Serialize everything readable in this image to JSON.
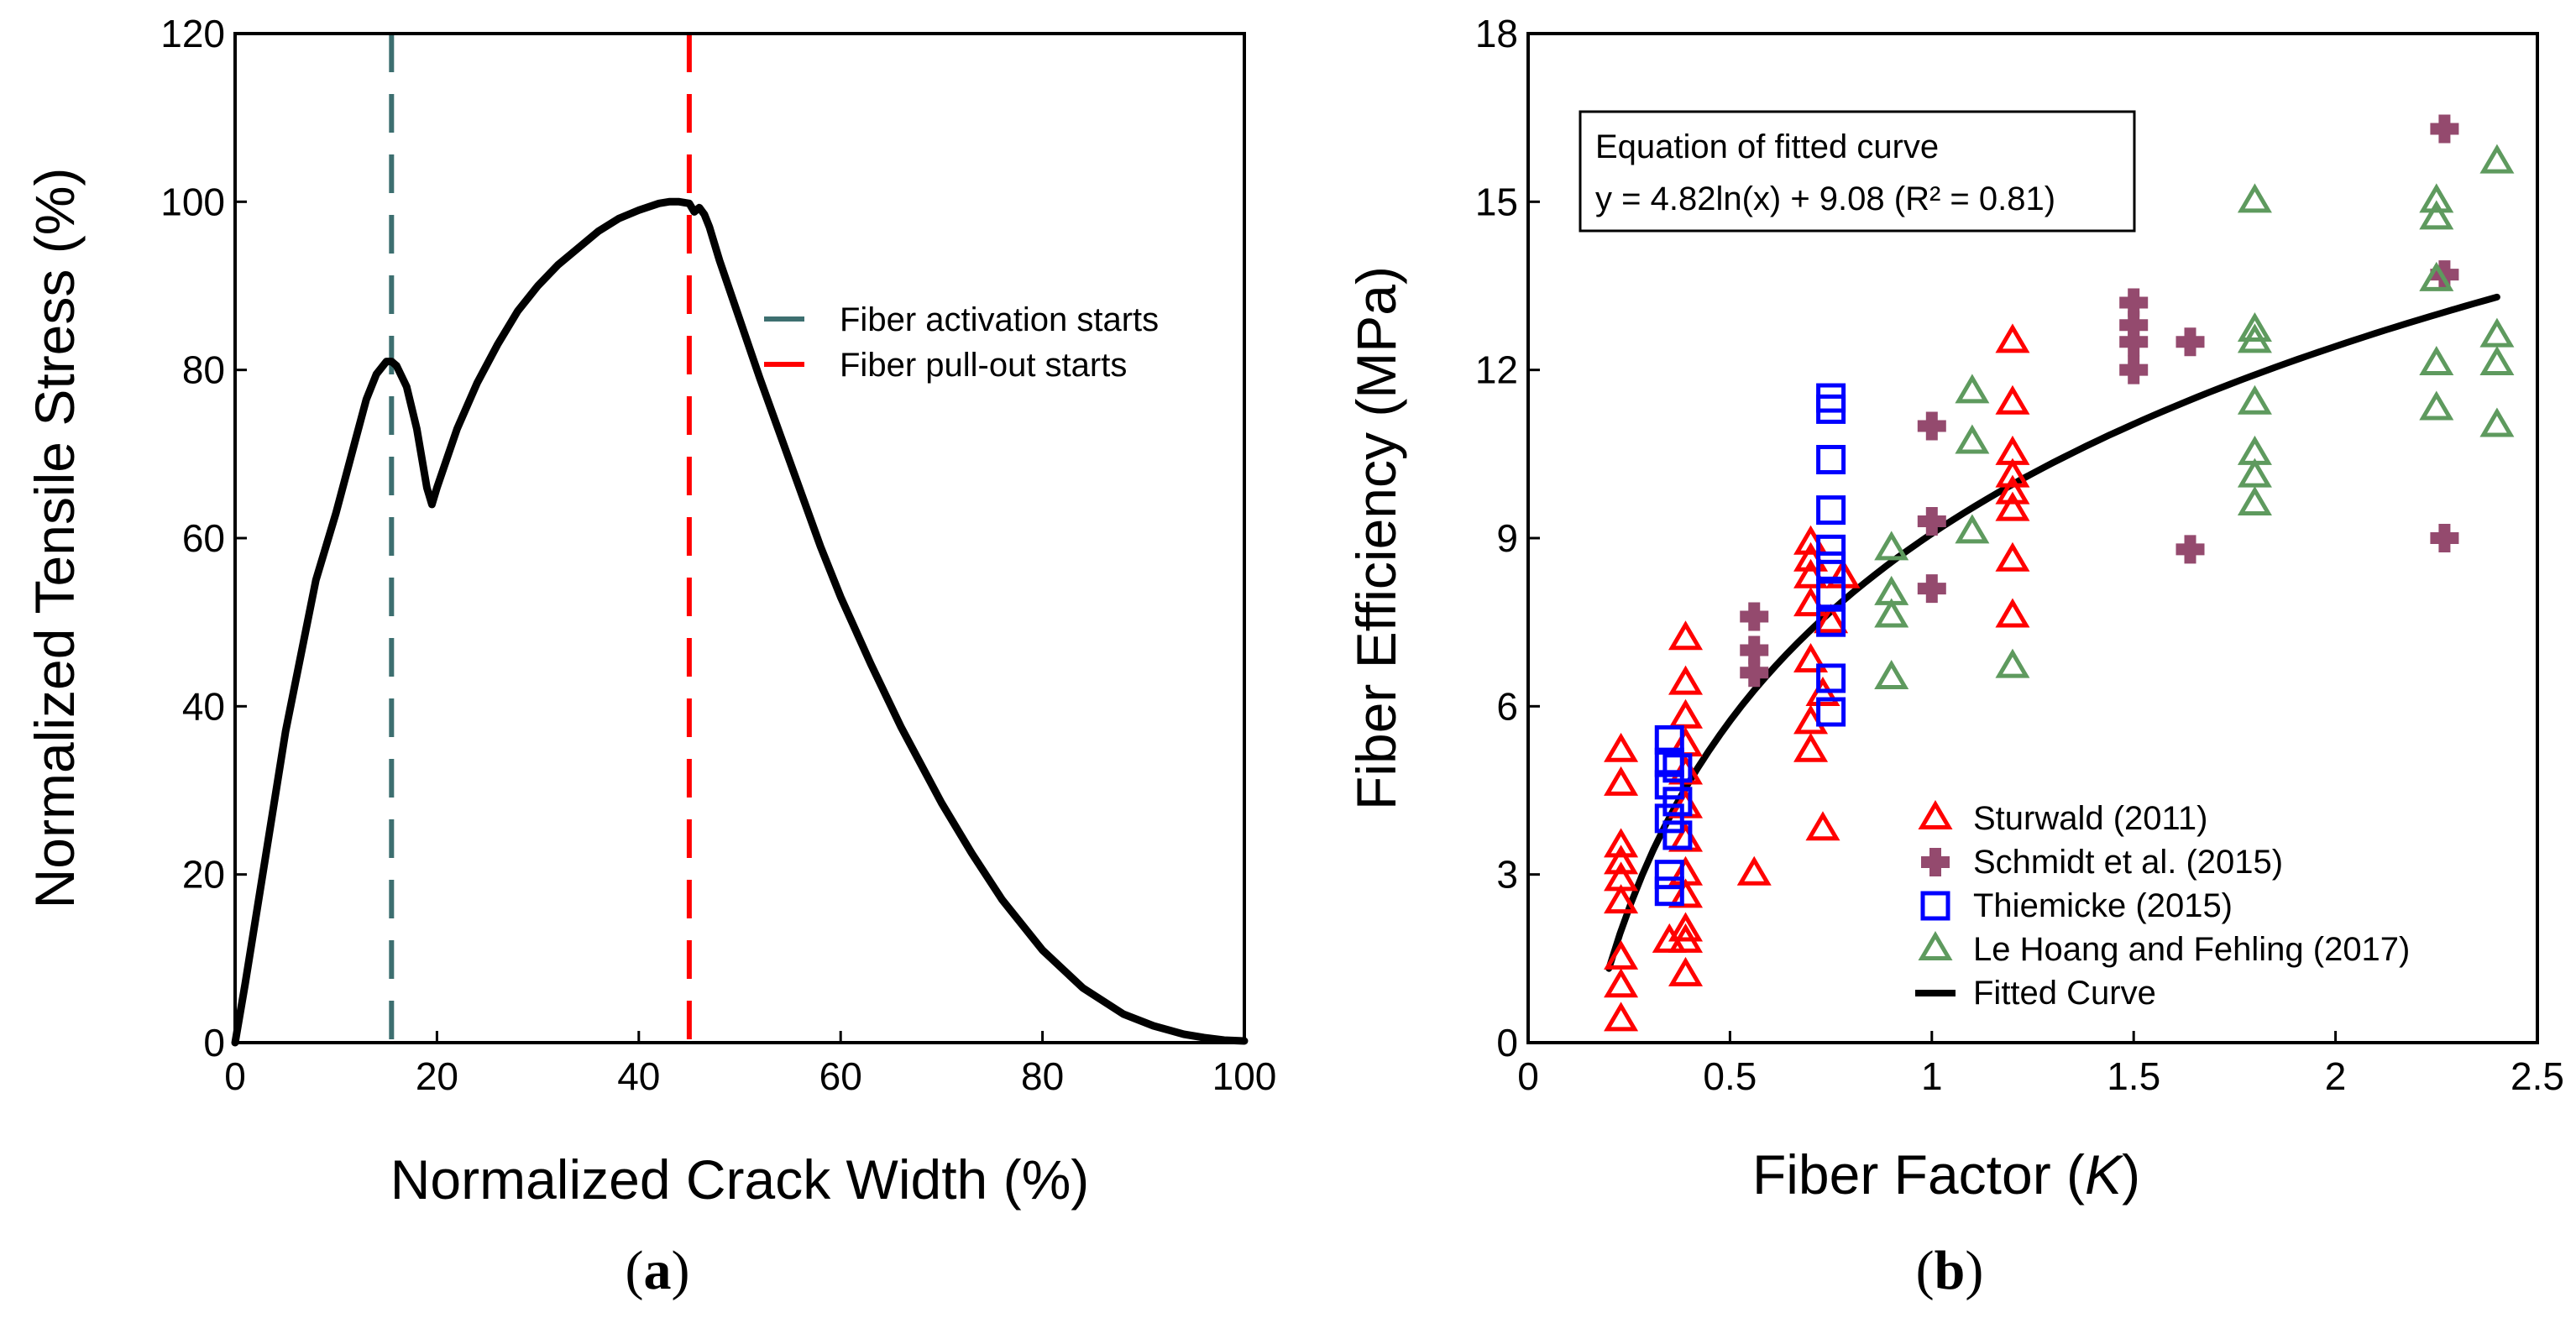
{
  "chart_data": [
    {
      "panel": "a",
      "type": "line",
      "panel_label": "a",
      "xlabel": "Normalized Crack Width (%)",
      "ylabel": "Normalized Tensile Stress (%)",
      "xlim": [
        0,
        100
      ],
      "ylim": [
        0,
        120
      ],
      "xticks": [
        0,
        20,
        40,
        60,
        80,
        100
      ],
      "yticks": [
        0,
        20,
        40,
        60,
        80,
        100,
        120
      ],
      "grid": false,
      "legend_position": "right-middle",
      "series": [
        {
          "style": "solid",
          "color": "#000000",
          "x": [
            0,
            1,
            3,
            5,
            8,
            10,
            12,
            13,
            14,
            15,
            15.5,
            16,
            17,
            18,
            19,
            19.5,
            20,
            21,
            22,
            24,
            26,
            28,
            30,
            32,
            34,
            36,
            38,
            40,
            42,
            43,
            44,
            45,
            45.5,
            46,
            46.5,
            47,
            48,
            50,
            52,
            55,
            58,
            60,
            63,
            66,
            70,
            73,
            76,
            80,
            84,
            88,
            91,
            94,
            96,
            98,
            100
          ],
          "y": [
            0,
            7,
            22,
            37,
            55,
            63,
            72,
            76.5,
            79.5,
            81,
            81,
            80.5,
            78,
            73,
            66,
            64,
            66,
            69.5,
            73,
            78.5,
            83,
            87,
            90,
            92.5,
            94.5,
            96.5,
            98,
            99,
            99.8,
            100,
            100,
            99.8,
            98.8,
            99.3,
            98.5,
            97,
            93,
            86,
            79,
            69,
            59,
            53,
            45,
            37.5,
            28.5,
            22.5,
            17,
            11,
            6.5,
            3.4,
            2,
            1,
            0.6,
            0.3,
            0.2
          ]
        },
        {
          "name": "Fiber activation starts",
          "style": "dashed-vertical",
          "color": "#3d6f70",
          "x_value": 15.5
        },
        {
          "name": "Fiber pull-out starts",
          "style": "dashed-vertical",
          "color": "#ff0000",
          "x_value": 45
        }
      ]
    },
    {
      "panel": "b",
      "type": "scatter",
      "panel_label": "b",
      "xlabel_prefix": "Fiber Factor (",
      "xlabel_var": "K",
      "xlabel_suffix": ")",
      "ylabel": "Fiber Efficiency (MPa)",
      "xlim": [
        0,
        2.5
      ],
      "ylim": [
        0,
        18
      ],
      "xticks": [
        "0",
        "0.5",
        "1",
        "1.5",
        "2",
        "2.5"
      ],
      "xtick_values": [
        0,
        0.5,
        1,
        1.5,
        2,
        2.5
      ],
      "yticks": [
        0,
        3,
        6,
        9,
        12,
        15,
        18
      ],
      "grid": false,
      "legend_position": "bottom-right",
      "annotation_line1": "Equation of fitted curve",
      "annotation_line2": "y = 4.82ln(x) + 9.08 (R² = 0.81)",
      "series": [
        {
          "name": "Sturwald (2011)",
          "marker": "triangle",
          "color": "#ff0000",
          "points": [
            [
              0.23,
              0.4
            ],
            [
              0.23,
              1.0
            ],
            [
              0.23,
              1.5
            ],
            [
              0.23,
              2.5
            ],
            [
              0.23,
              2.9
            ],
            [
              0.23,
              3.2
            ],
            [
              0.23,
              3.5
            ],
            [
              0.23,
              4.6
            ],
            [
              0.23,
              5.2
            ],
            [
              0.35,
              1.8
            ],
            [
              0.39,
              1.2
            ],
            [
              0.39,
              1.8
            ],
            [
              0.39,
              2.0
            ],
            [
              0.39,
              2.6
            ],
            [
              0.39,
              3.0
            ],
            [
              0.39,
              3.6
            ],
            [
              0.39,
              4.2
            ],
            [
              0.39,
              4.8
            ],
            [
              0.39,
              5.3
            ],
            [
              0.39,
              5.8
            ],
            [
              0.39,
              6.4
            ],
            [
              0.39,
              7.2
            ],
            [
              0.56,
              3.0
            ],
            [
              0.7,
              5.2
            ],
            [
              0.7,
              5.7
            ],
            [
              0.7,
              6.8
            ],
            [
              0.7,
              7.8
            ],
            [
              0.7,
              8.3
            ],
            [
              0.7,
              8.6
            ],
            [
              0.7,
              8.9
            ],
            [
              0.73,
              3.8
            ],
            [
              0.73,
              6.2
            ],
            [
              0.75,
              7.5
            ],
            [
              0.78,
              8.3
            ],
            [
              1.2,
              7.6
            ],
            [
              1.2,
              8.6
            ],
            [
              1.2,
              9.5
            ],
            [
              1.2,
              9.8
            ],
            [
              1.2,
              10.1
            ],
            [
              1.2,
              10.5
            ],
            [
              1.2,
              11.4
            ],
            [
              1.2,
              12.5
            ]
          ]
        },
        {
          "name": "Schmidt et al. (2015)",
          "marker": "plus",
          "color": "#944a6e",
          "points": [
            [
              0.56,
              6.6
            ],
            [
              0.56,
              7.0
            ],
            [
              0.56,
              7.6
            ],
            [
              1.0,
              8.1
            ],
            [
              1.0,
              9.3
            ],
            [
              1.0,
              11.0
            ],
            [
              1.5,
              12.0
            ],
            [
              1.5,
              12.5
            ],
            [
              1.5,
              12.8
            ],
            [
              1.5,
              13.2
            ],
            [
              1.64,
              8.8
            ],
            [
              1.64,
              12.5
            ],
            [
              2.27,
              9.0
            ],
            [
              2.27,
              13.7
            ],
            [
              2.27,
              16.3
            ]
          ]
        },
        {
          "name": "Thiemicke (2015)",
          "marker": "square",
          "color": "#0000ff",
          "points": [
            [
              0.35,
              2.7
            ],
            [
              0.35,
              3.0
            ],
            [
              0.35,
              4.0
            ],
            [
              0.35,
              4.6
            ],
            [
              0.35,
              5.0
            ],
            [
              0.35,
              5.4
            ],
            [
              0.37,
              3.7
            ],
            [
              0.37,
              4.3
            ],
            [
              0.37,
              4.9
            ],
            [
              0.75,
              5.9
            ],
            [
              0.75,
              6.5
            ],
            [
              0.75,
              7.5
            ],
            [
              0.75,
              8.0
            ],
            [
              0.75,
              8.5
            ],
            [
              0.75,
              8.8
            ],
            [
              0.75,
              9.5
            ],
            [
              0.75,
              10.4
            ],
            [
              0.75,
              11.3
            ],
            [
              0.75,
              11.5
            ]
          ]
        },
        {
          "name": "Le Hoang and Fehling (2017)",
          "marker": "triangle",
          "color": "#5e9a5e",
          "points": [
            [
              0.9,
              6.5
            ],
            [
              0.9,
              7.6
            ],
            [
              0.9,
              8.0
            ],
            [
              0.9,
              8.8
            ],
            [
              1.1,
              9.1
            ],
            [
              1.1,
              10.7
            ],
            [
              1.1,
              11.6
            ],
            [
              1.8,
              9.6
            ],
            [
              1.8,
              10.1
            ],
            [
              1.8,
              10.5
            ],
            [
              1.8,
              11.4
            ],
            [
              1.8,
              12.5
            ],
            [
              1.8,
              15.0
            ],
            [
              1.8,
              12.7
            ],
            [
              2.25,
              11.3
            ],
            [
              2.25,
              12.1
            ],
            [
              2.25,
              13.6
            ],
            [
              2.25,
              14.7
            ],
            [
              2.25,
              15.0
            ],
            [
              2.4,
              11.0
            ],
            [
              2.4,
              12.1
            ],
            [
              2.4,
              12.6
            ],
            [
              2.4,
              15.7
            ],
            [
              1.2,
              6.7
            ]
          ]
        },
        {
          "name": "Fitted Curve",
          "marker": "line",
          "color": "#000000",
          "fit": {
            "a": 4.82,
            "b": 9.08,
            "x_start": 0.2,
            "x_end": 2.4
          }
        }
      ]
    }
  ]
}
